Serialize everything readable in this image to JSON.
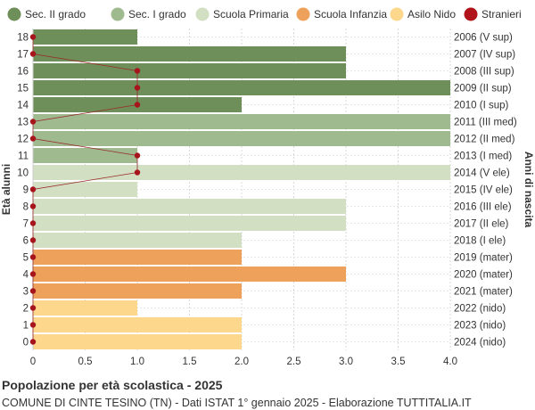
{
  "chart_data": {
    "type": "bar",
    "orientation": "horizontal",
    "title": "Popolazione per età scolastica - 2025",
    "subtitle": "COMUNE DI CINTE TESINO (TN) - Dati ISTAT 1° gennaio 2025 - Elaborazione TUTTITALIA.IT",
    "ylabel_left": "Età alunni",
    "ylabel_right": "Anni di nascita",
    "xlim": [
      0,
      4
    ],
    "xticks": [
      "0",
      "0.5",
      "1.0",
      "1.5",
      "2.0",
      "2.5",
      "3.0",
      "3.5",
      "4.0"
    ],
    "grid": true,
    "legend_position": "top",
    "legend": [
      {
        "name": "Sec. II grado",
        "color": "#6e8f5a"
      },
      {
        "name": "Sec. I grado",
        "color": "#9fba8e"
      },
      {
        "name": "Scuola Primaria",
        "color": "#d3dfc2"
      },
      {
        "name": "Scuola Infanzia",
        "color": "#eea15a"
      },
      {
        "name": "Asilo Nido",
        "color": "#fdd88c"
      },
      {
        "name": "Stranieri",
        "color": "#b0151b"
      }
    ],
    "rows": [
      {
        "age": "18",
        "birth": "2006 (V sup)",
        "value": 1,
        "stranieri": 0,
        "group": 0
      },
      {
        "age": "17",
        "birth": "2007 (IV sup)",
        "value": 3,
        "stranieri": 0,
        "group": 0
      },
      {
        "age": "16",
        "birth": "2008 (III sup)",
        "value": 3,
        "stranieri": 1,
        "group": 0
      },
      {
        "age": "15",
        "birth": "2009 (II sup)",
        "value": 4,
        "stranieri": 1,
        "group": 0
      },
      {
        "age": "14",
        "birth": "2010 (I sup)",
        "value": 2,
        "stranieri": 1,
        "group": 0
      },
      {
        "age": "13",
        "birth": "2011 (III med)",
        "value": 4,
        "stranieri": 0,
        "group": 1
      },
      {
        "age": "12",
        "birth": "2012 (II med)",
        "value": 4,
        "stranieri": 0,
        "group": 1
      },
      {
        "age": "11",
        "birth": "2013 (I med)",
        "value": 1,
        "stranieri": 1,
        "group": 1
      },
      {
        "age": "10",
        "birth": "2014 (V ele)",
        "value": 4,
        "stranieri": 1,
        "group": 2
      },
      {
        "age": "9",
        "birth": "2015 (IV ele)",
        "value": 1,
        "stranieri": 0,
        "group": 2
      },
      {
        "age": "8",
        "birth": "2016 (III ele)",
        "value": 3,
        "stranieri": 0,
        "group": 2
      },
      {
        "age": "7",
        "birth": "2017 (II ele)",
        "value": 3,
        "stranieri": 0,
        "group": 2
      },
      {
        "age": "6",
        "birth": "2018 (I ele)",
        "value": 2,
        "stranieri": 0,
        "group": 2
      },
      {
        "age": "5",
        "birth": "2019 (mater)",
        "value": 2,
        "stranieri": 0,
        "group": 3
      },
      {
        "age": "4",
        "birth": "2020 (mater)",
        "value": 3,
        "stranieri": 0,
        "group": 3
      },
      {
        "age": "3",
        "birth": "2021 (mater)",
        "value": 2,
        "stranieri": 0,
        "group": 3
      },
      {
        "age": "2",
        "birth": "2022 (nido)",
        "value": 1,
        "stranieri": 0,
        "group": 4
      },
      {
        "age": "1",
        "birth": "2023 (nido)",
        "value": 2,
        "stranieri": 0,
        "group": 4
      },
      {
        "age": "0",
        "birth": "2024 (nido)",
        "value": 2,
        "stranieri": 0,
        "group": 4
      }
    ]
  }
}
